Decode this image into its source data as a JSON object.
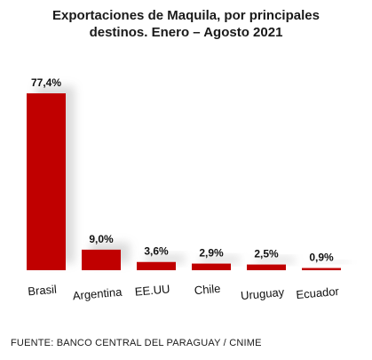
{
  "chart_data": {
    "type": "bar",
    "title": "Exportaciones  de Maquila,  por principales\ndestinos.  Enero – Agosto 2021",
    "categories": [
      "Brasil",
      "Argentina",
      "EE.UU",
      "Chile",
      "Uruguay",
      "Ecuador"
    ],
    "values": [
      77.4,
      9.0,
      3.6,
      2.9,
      2.5,
      0.9
    ],
    "data_labels": [
      "77,4%",
      "9,0%",
      "3,6%",
      "2,9%",
      "2,5%",
      "0,9%"
    ],
    "xlabel": "",
    "ylabel": "",
    "ylim": [
      0,
      77.4
    ],
    "grid": false,
    "legend": "none",
    "bar_color": "#c00000",
    "source": "FUENTE: BANCO CENTRAL DEL PARAGUAY / CNIME"
  }
}
